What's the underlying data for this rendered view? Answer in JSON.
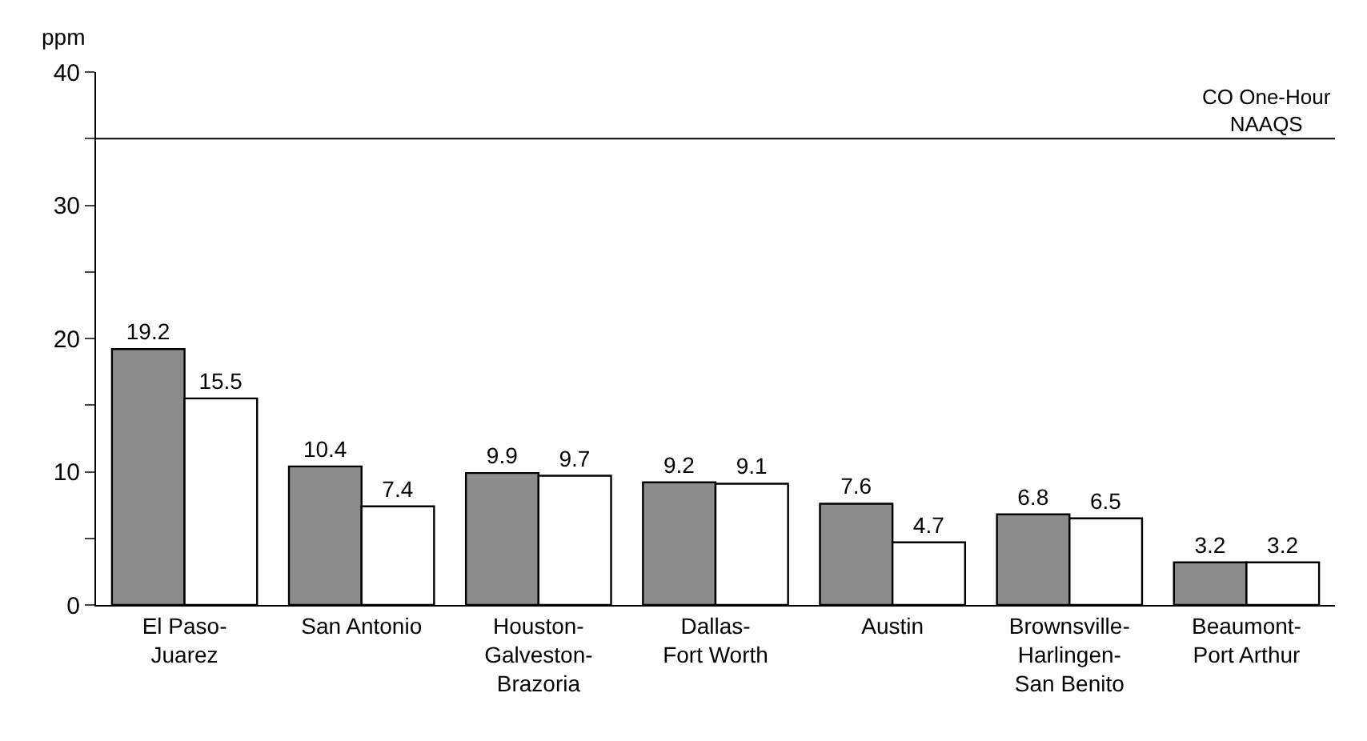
{
  "chart_data": {
    "type": "bar",
    "ylabel": "ppm",
    "categories": [
      "El Paso-Juarez",
      "San Antonio",
      "Houston-Galveston-Brazoria",
      "Dallas-Fort Worth",
      "Austin",
      "Brownsville-Harlingen-San Benito",
      "Beaumont-Port Arthur"
    ],
    "series": [
      {
        "color": "#8c8c8c",
        "values": [
          19.2,
          10.4,
          9.9,
          9.2,
          7.6,
          6.8,
          3.2
        ]
      },
      {
        "color": "#ffffff",
        "values": [
          15.5,
          7.4,
          9.7,
          9.1,
          4.7,
          6.5,
          3.2
        ]
      }
    ],
    "ylim": [
      0,
      40
    ],
    "yticks": [
      0,
      {
        "value": 5,
        "label": null
      },
      10,
      {
        "value": 15,
        "label": null
      },
      20,
      {
        "value": 25,
        "label": null
      },
      30,
      {
        "value": 35,
        "label": null
      },
      40
    ],
    "ref_lines": [
      {
        "axis": "y",
        "value": 35,
        "label": "CO One-Hour NAAQS",
        "color": "#000000"
      }
    ],
    "data_labels": true
  }
}
